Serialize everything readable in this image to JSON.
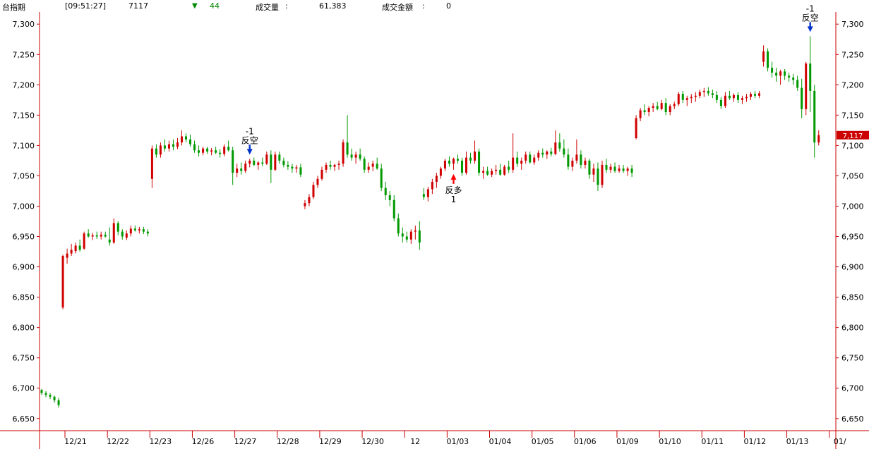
{
  "header": {
    "symbol": "台指期",
    "time": "[09:51:27]",
    "price": "7117",
    "change_arrow": "▼",
    "change": "44",
    "volume_label": "成交量",
    "volume_sep": ":",
    "volume": "61,383",
    "amount_label": "成交金額",
    "amount_sep": ":",
    "amount": "0"
  },
  "colors": {
    "up": "#d00000",
    "down": "#009900",
    "axis": "#cc0000",
    "price_tag_bg": "#cc0000",
    "buy_arrow": "#ff0000",
    "sell_arrow": "#0033cc"
  },
  "chart_data": {
    "type": "candlestick",
    "ylim": [
      6630,
      7320
    ],
    "yticks": [
      "7,300",
      "7,250",
      "7,200",
      "7,150",
      "7,100",
      "7,050",
      "7,000",
      "6,950",
      "6,900",
      "6,850",
      "6,800",
      "6,750",
      "6,700",
      "6,650"
    ],
    "ytick_values": [
      7300,
      7250,
      7200,
      7150,
      7100,
      7050,
      7000,
      6950,
      6900,
      6850,
      6800,
      6750,
      6700,
      6650
    ],
    "date_labels": [
      "12/21",
      "12/22",
      "12/23",
      "12/26",
      "12/27",
      "12/28",
      "12/29",
      "12/30",
      "12",
      "01/03",
      "01/04",
      "01/05",
      "01/06",
      "01/09",
      "01/10",
      "01/11",
      "01/12",
      "01/13",
      "01/"
    ],
    "last_price_label": "7,117",
    "last_price": 7117,
    "bars_per_day": 10,
    "candles": [
      [
        6697,
        6699,
        6689,
        6692
      ],
      [
        6692,
        6695,
        6685,
        6689
      ],
      [
        6689,
        6692,
        6682,
        6686
      ],
      [
        6686,
        6688,
        6676,
        6680
      ],
      [
        6680,
        6684,
        6668,
        6672
      ],
      [
        6833,
        6920,
        6830,
        6918
      ],
      [
        6915,
        6930,
        6905,
        6922
      ],
      [
        6922,
        6938,
        6918,
        6928
      ],
      [
        6926,
        6940,
        6922,
        6935
      ],
      [
        6935,
        6945,
        6925,
        6928
      ],
      [
        6930,
        6958,
        6928,
        6955
      ],
      [
        6955,
        6962,
        6948,
        6950
      ],
      [
        6950,
        6956,
        6944,
        6952
      ],
      [
        6952,
        6958,
        6946,
        6950
      ],
      [
        6950,
        6958,
        6945,
        6953
      ],
      [
        6953,
        6958,
        6948,
        6950
      ],
      [
        6945,
        6965,
        6935,
        6940
      ],
      [
        6940,
        6980,
        6938,
        6972
      ],
      [
        6972,
        6975,
        6952,
        6958
      ],
      [
        6958,
        6962,
        6945,
        6950
      ],
      [
        6948,
        6960,
        6944,
        6955
      ],
      [
        6955,
        6968,
        6950,
        6963
      ],
      [
        6963,
        6968,
        6958,
        6960
      ],
      [
        6960,
        6966,
        6955,
        6962
      ],
      [
        6962,
        6966,
        6954,
        6958
      ],
      [
        6958,
        6962,
        6950,
        6955
      ],
      [
        7045,
        7100,
        7030,
        7095
      ],
      [
        7095,
        7102,
        7080,
        7085
      ],
      [
        7085,
        7105,
        7080,
        7100
      ],
      [
        7100,
        7110,
        7090,
        7095
      ],
      [
        7095,
        7108,
        7090,
        7102
      ],
      [
        7102,
        7110,
        7092,
        7098
      ],
      [
        7098,
        7112,
        7094,
        7105
      ],
      [
        7105,
        7125,
        7100,
        7115
      ],
      [
        7115,
        7120,
        7105,
        7110
      ],
      [
        7110,
        7118,
        7098,
        7102
      ],
      [
        7102,
        7108,
        7088,
        7092
      ],
      [
        7092,
        7100,
        7082,
        7088
      ],
      [
        7088,
        7098,
        7084,
        7095
      ],
      [
        7095,
        7098,
        7086,
        7090
      ],
      [
        7090,
        7096,
        7084,
        7092
      ],
      [
        7092,
        7098,
        7086,
        7088
      ],
      [
        7088,
        7094,
        7080,
        7086
      ],
      [
        7086,
        7102,
        7082,
        7098
      ],
      [
        7098,
        7108,
        7090,
        7092
      ],
      [
        7092,
        7098,
        7035,
        7055
      ],
      [
        7055,
        7070,
        7048,
        7062
      ],
      [
        7062,
        7072,
        7052,
        7058
      ],
      [
        7058,
        7075,
        7055,
        7070
      ],
      [
        7070,
        7078,
        7064,
        7075
      ],
      [
        7075,
        7080,
        7066,
        7068
      ],
      [
        7068,
        7074,
        7060,
        7072
      ],
      [
        7072,
        7080,
        7066,
        7070
      ],
      [
        7070,
        7090,
        7068,
        7085
      ],
      [
        7085,
        7092,
        7038,
        7060
      ],
      [
        7060,
        7090,
        7058,
        7085
      ],
      [
        7085,
        7090,
        7070,
        7075
      ],
      [
        7075,
        7080,
        7064,
        7068
      ],
      [
        7068,
        7074,
        7060,
        7065
      ],
      [
        7065,
        7070,
        7055,
        7062
      ],
      [
        7062,
        7068,
        7055,
        7064
      ],
      [
        7064,
        7070,
        7048,
        7052
      ],
      [
        7000,
        7010,
        6995,
        7005
      ],
      [
        7005,
        7020,
        7000,
        7015
      ],
      [
        7015,
        7040,
        7012,
        7035
      ],
      [
        7035,
        7050,
        7030,
        7045
      ],
      [
        7045,
        7065,
        7042,
        7060
      ],
      [
        7060,
        7072,
        7055,
        7068
      ],
      [
        7068,
        7075,
        7060,
        7065
      ],
      [
        7065,
        7070,
        7058,
        7068
      ],
      [
        7068,
        7075,
        7060,
        7070
      ],
      [
        7070,
        7110,
        7065,
        7105
      ],
      [
        7105,
        7150,
        7080,
        7085
      ],
      [
        7085,
        7095,
        7075,
        7080
      ],
      [
        7080,
        7090,
        7070,
        7085
      ],
      [
        7085,
        7095,
        7075,
        7078
      ],
      [
        7078,
        7082,
        7055,
        7060
      ],
      [
        7060,
        7072,
        7055,
        7065
      ],
      [
        7065,
        7075,
        7058,
        7070
      ],
      [
        7070,
        7080,
        7060,
        7062
      ],
      [
        7062,
        7070,
        7025,
        7030
      ],
      [
        7030,
        7040,
        7010,
        7018
      ],
      [
        7018,
        7025,
        7000,
        7010
      ],
      [
        7010,
        7018,
        6975,
        6980
      ],
      [
        6980,
        6988,
        6950,
        6955
      ],
      [
        6955,
        6965,
        6940,
        6950
      ],
      [
        6950,
        6958,
        6940,
        6945
      ],
      [
        6945,
        6962,
        6938,
        6958
      ],
      [
        6958,
        6968,
        6945,
        6960
      ],
      [
        6960,
        6975,
        6928,
        6940
      ],
      [
        7020,
        7030,
        7010,
        7015
      ],
      [
        7015,
        7032,
        7008,
        7028
      ],
      [
        7028,
        7045,
        7020,
        7040
      ],
      [
        7040,
        7055,
        7030,
        7050
      ],
      [
        7050,
        7065,
        7045,
        7062
      ],
      [
        7062,
        7078,
        7058,
        7075
      ],
      [
        7075,
        7082,
        7065,
        7070
      ],
      [
        7070,
        7080,
        7060,
        7078
      ],
      [
        7078,
        7085,
        7070,
        7075
      ],
      [
        7075,
        7080,
        7050,
        7055
      ],
      [
        7055,
        7090,
        7052,
        7080
      ],
      [
        7080,
        7088,
        7070,
        7075
      ],
      [
        7075,
        7108,
        7070,
        7090
      ],
      [
        7090,
        7095,
        7050,
        7055
      ],
      [
        7055,
        7065,
        7045,
        7058
      ],
      [
        7058,
        7065,
        7050,
        7052
      ],
      [
        7052,
        7062,
        7048,
        7058
      ],
      [
        7058,
        7068,
        7052,
        7060
      ],
      [
        7060,
        7070,
        7050,
        7052
      ],
      [
        7052,
        7068,
        7050,
        7065
      ],
      [
        7065,
        7075,
        7055,
        7060
      ],
      [
        7060,
        7120,
        7055,
        7080
      ],
      [
        7080,
        7090,
        7065,
        7070
      ],
      [
        7070,
        7080,
        7060,
        7075
      ],
      [
        7075,
        7090,
        7070,
        7085
      ],
      [
        7085,
        7090,
        7070,
        7072
      ],
      [
        7072,
        7085,
        7068,
        7080
      ],
      [
        7080,
        7092,
        7075,
        7088
      ],
      [
        7088,
        7095,
        7080,
        7085
      ],
      [
        7085,
        7092,
        7078,
        7090
      ],
      [
        7090,
        7096,
        7082,
        7086
      ],
      [
        7086,
        7125,
        7084,
        7105
      ],
      [
        7105,
        7120,
        7090,
        7095
      ],
      [
        7095,
        7110,
        7080,
        7085
      ],
      [
        7085,
        7095,
        7060,
        7065
      ],
      [
        7065,
        7080,
        7058,
        7075
      ],
      [
        7075,
        7110,
        7070,
        7085
      ],
      [
        7085,
        7092,
        7062,
        7068
      ],
      [
        7068,
        7080,
        7062,
        7075
      ],
      [
        7075,
        7078,
        7045,
        7052
      ],
      [
        7052,
        7070,
        7040,
        7062
      ],
      [
        7062,
        7072,
        7025,
        7035
      ],
      [
        7035,
        7075,
        7030,
        7068
      ],
      [
        7068,
        7078,
        7055,
        7060
      ],
      [
        7060,
        7070,
        7055,
        7065
      ],
      [
        7065,
        7072,
        7055,
        7058
      ],
      [
        7058,
        7068,
        7055,
        7062
      ],
      [
        7062,
        7068,
        7055,
        7058
      ],
      [
        7058,
        7065,
        7050,
        7062
      ],
      [
        7062,
        7068,
        7048,
        7055
      ],
      [
        7112,
        7150,
        7110,
        7145
      ],
      [
        7145,
        7162,
        7140,
        7158
      ],
      [
        7158,
        7168,
        7150,
        7155
      ],
      [
        7155,
        7165,
        7148,
        7162
      ],
      [
        7162,
        7170,
        7155,
        7165
      ],
      [
        7165,
        7172,
        7158,
        7160
      ],
      [
        7160,
        7175,
        7158,
        7170
      ],
      [
        7170,
        7178,
        7150,
        7155
      ],
      [
        7155,
        7168,
        7150,
        7165
      ],
      [
        7165,
        7172,
        7160,
        7168
      ],
      [
        7168,
        7188,
        7165,
        7185
      ],
      [
        7185,
        7190,
        7170,
        7175
      ],
      [
        7175,
        7182,
        7165,
        7178
      ],
      [
        7178,
        7185,
        7170,
        7180
      ],
      [
        7180,
        7188,
        7172,
        7182
      ],
      [
        7182,
        7192,
        7178,
        7188
      ],
      [
        7188,
        7195,
        7180,
        7190
      ],
      [
        7190,
        7196,
        7182,
        7186
      ],
      [
        7186,
        7192,
        7178,
        7183
      ],
      [
        7183,
        7190,
        7170,
        7175
      ],
      [
        7175,
        7180,
        7160,
        7165
      ],
      [
        7165,
        7188,
        7162,
        7182
      ],
      [
        7182,
        7190,
        7175,
        7178
      ],
      [
        7178,
        7186,
        7172,
        7183
      ],
      [
        7183,
        7188,
        7170,
        7175
      ],
      [
        7175,
        7182,
        7168,
        7178
      ],
      [
        7178,
        7185,
        7172,
        7180
      ],
      [
        7180,
        7188,
        7175,
        7185
      ],
      [
        7185,
        7190,
        7178,
        7182
      ],
      [
        7182,
        7190,
        7178,
        7186
      ],
      [
        7238,
        7265,
        7230,
        7255
      ],
      [
        7255,
        7260,
        7222,
        7228
      ],
      [
        7228,
        7238,
        7212,
        7220
      ],
      [
        7220,
        7228,
        7205,
        7215
      ],
      [
        7215,
        7225,
        7200,
        7222
      ],
      [
        7222,
        7226,
        7208,
        7215
      ],
      [
        7215,
        7220,
        7205,
        7212
      ],
      [
        7212,
        7218,
        7200,
        7208
      ],
      [
        7208,
        7215,
        7190,
        7195
      ],
      [
        7195,
        7210,
        7145,
        7160
      ],
      [
        7160,
        7238,
        7150,
        7235
      ],
      [
        7235,
        7280,
        7155,
        7190
      ],
      [
        7190,
        7200,
        7080,
        7105
      ],
      [
        7105,
        7125,
        7100,
        7117
      ]
    ],
    "annotations": [
      {
        "bar": 49,
        "type": "sell",
        "label_top": "-1",
        "label_word": "反空"
      },
      {
        "bar": 97,
        "type": "buy",
        "label_word": "反多",
        "label_bottom": "1"
      },
      {
        "bar": 181,
        "type": "sell",
        "label_top": "-1",
        "label_word": "反空"
      }
    ]
  }
}
